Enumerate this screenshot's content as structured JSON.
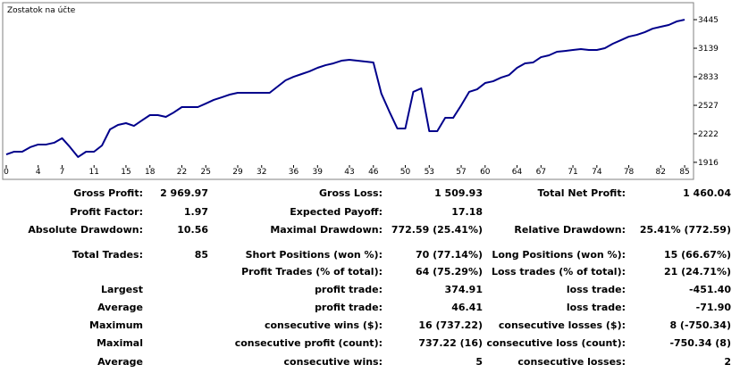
{
  "chart_data": {
    "type": "line",
    "title": "Zostatok na účte",
    "x": [
      0,
      1,
      2,
      3,
      4,
      5,
      6,
      7,
      8,
      9,
      10,
      11,
      12,
      13,
      14,
      15,
      16,
      17,
      18,
      19,
      20,
      21,
      22,
      23,
      24,
      25,
      26,
      27,
      28,
      29,
      30,
      31,
      32,
      33,
      34,
      35,
      36,
      37,
      38,
      39,
      40,
      41,
      42,
      43,
      44,
      45,
      46,
      47,
      48,
      49,
      50,
      51,
      52,
      53,
      54,
      55,
      56,
      57,
      58,
      59,
      60,
      61,
      62,
      63,
      64,
      65,
      66,
      67,
      68,
      69,
      70,
      71,
      72,
      73,
      74,
      75,
      76,
      77,
      78,
      79,
      80,
      81,
      82,
      83,
      84,
      85
    ],
    "values": [
      2001,
      2030,
      2030,
      2078,
      2107,
      2107,
      2126,
      2174,
      2078,
      1973,
      2030,
      2030,
      2097,
      2269,
      2317,
      2336,
      2307,
      2365,
      2422,
      2422,
      2403,
      2451,
      2508,
      2508,
      2508,
      2546,
      2585,
      2613,
      2642,
      2661,
      2661,
      2661,
      2661,
      2661,
      2728,
      2795,
      2833,
      2862,
      2891,
      2929,
      2957,
      2977,
      3005,
      3015,
      3005,
      2996,
      2986,
      2652,
      2460,
      2279,
      2279,
      2671,
      2709,
      2250,
      2250,
      2393,
      2393,
      2527,
      2671,
      2699,
      2766,
      2785,
      2824,
      2852,
      2929,
      2977,
      2986,
      3043,
      3063,
      3101,
      3110,
      3120,
      3130,
      3120,
      3120,
      3139,
      3187,
      3225,
      3263,
      3282,
      3311,
      3349,
      3369,
      3388,
      3426,
      3445
    ],
    "color": "#00008b",
    "xlim": [
      0,
      86
    ],
    "xticks": [
      0,
      4,
      7,
      11,
      15,
      18,
      22,
      25,
      29,
      32,
      36,
      39,
      43,
      46,
      50,
      53,
      57,
      60,
      64,
      67,
      71,
      74,
      78,
      82,
      85
    ],
    "ylim": [
      1896,
      3608
    ],
    "yticks": [
      1916,
      2222,
      2527,
      2833,
      3139,
      3445
    ],
    "grid": false
  },
  "table": {
    "rows": [
      [
        "Gross Profit:",
        "2 969.97",
        "Gross Loss:",
        "1 509.93",
        "Total Net Profit:",
        "1 460.04"
      ],
      [
        "Profit Factor:",
        "1.97",
        "Expected Payoff:",
        "17.18",
        null,
        null
      ],
      [
        "Absolute Drawdown:",
        "10.56",
        "Maximal Drawdown:",
        "772.59 (25.41%)",
        "Relative Drawdown:",
        "25.41% (772.59)"
      ],
      [
        "Total Trades:",
        "85",
        "Short Positions (won %):",
        "70 (77.14%)",
        "Long Positions (won %):",
        "15 (66.67%)"
      ],
      [
        null,
        null,
        "Profit Trades (% of total):",
        "64 (75.29%)",
        "Loss trades (% of total):",
        "21 (24.71%)"
      ],
      [
        "Largest",
        null,
        "profit trade:",
        "374.91",
        "loss trade:",
        "-451.40"
      ],
      [
        "Average",
        null,
        "profit trade:",
        "46.41",
        "loss trade:",
        "-71.90"
      ],
      [
        "Maximum",
        null,
        "consecutive wins ($):",
        "16 (737.22)",
        "consecutive losses ($):",
        "8 (-750.34)"
      ],
      [
        "Maximal",
        null,
        "consecutive profit (count):",
        "737.22 (16)",
        "consecutive loss (count):",
        "-750.34 (8)"
      ],
      [
        "Average",
        null,
        "consecutive wins:",
        "5",
        "consecutive losses:",
        "2"
      ]
    ]
  }
}
